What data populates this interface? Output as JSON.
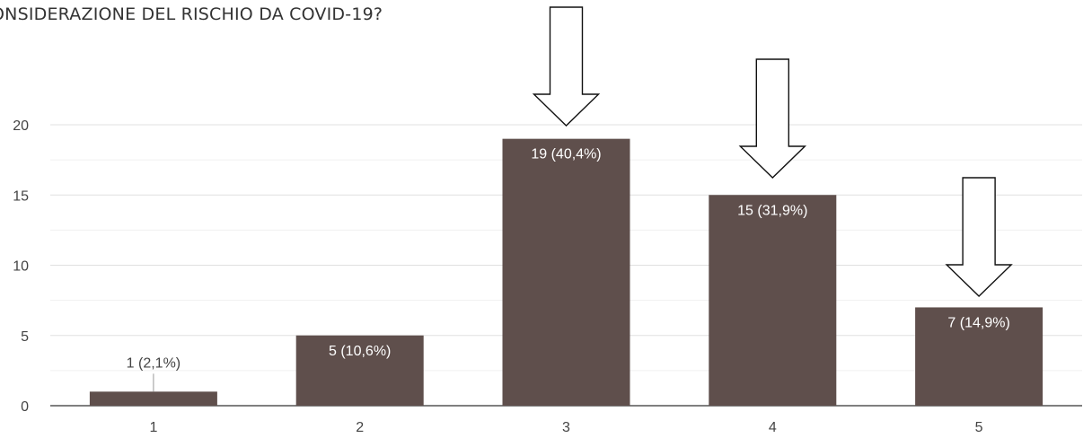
{
  "chart_data": {
    "type": "bar",
    "title": "ONSIDERAZIONE DEL RISCHIO DA COVID-19?",
    "categories": [
      "1",
      "2",
      "3",
      "4",
      "5"
    ],
    "values": [
      1,
      5,
      19,
      15,
      7
    ],
    "data_labels": [
      "1 (2,1%)",
      "5 (10,6%)",
      "19 (40,4%)",
      "15 (31,9%)",
      "7 (14,9%)"
    ],
    "y_ticks": [
      0,
      5,
      10,
      15,
      20
    ],
    "ylim": [
      0,
      20
    ],
    "xlabel": "",
    "ylabel": "",
    "grid": true,
    "bar_color": "#5f4f4c",
    "label_color_inside": "#ffffff",
    "label_color_outside": "#444444",
    "gridline_color": "#e0e0e0",
    "annotations": [
      {
        "type": "arrow-down-outline",
        "category": "3"
      },
      {
        "type": "arrow-down-outline",
        "category": "4"
      },
      {
        "type": "arrow-down-outline",
        "category": "5"
      }
    ]
  }
}
